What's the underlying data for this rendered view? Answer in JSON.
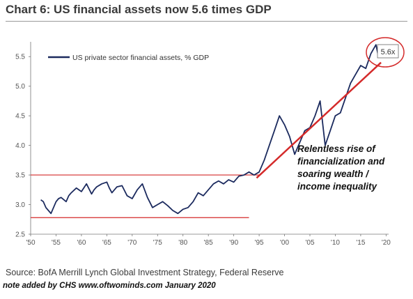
{
  "title": "Chart 6: US financial assets now 5.6 times GDP",
  "source": "Source: BofA Merrill Lynch Global Investment Strategy, Federal Reserve",
  "note": "note added by CHS   www.oftwominds.com   January 2020",
  "colors": {
    "line": "#1b2a5e",
    "annotation": "#d42a2a",
    "axis": "#555555"
  },
  "annotation": {
    "badge": "5.6x",
    "text_lines": [
      "Relentless rise of",
      "financialization and",
      "soaring wealth /",
      "income inequality"
    ]
  },
  "chart_data": {
    "type": "line",
    "title": "Chart 6: US financial assets now 5.6 times GDP",
    "xlabel": "",
    "ylabel": "",
    "xlim": [
      1950,
      2020.5
    ],
    "ylim": [
      2.5,
      5.75
    ],
    "xticks": [
      1950,
      1955,
      1960,
      1965,
      1970,
      1975,
      1980,
      1985,
      1990,
      1995,
      2000,
      2005,
      2010,
      2015,
      2020
    ],
    "xtick_labels": [
      "'50",
      "'55",
      "'60",
      "'65",
      "'70",
      "'75",
      "'80",
      "'85",
      "'90",
      "'95",
      "'00",
      "'05",
      "'10",
      "'15",
      "'20"
    ],
    "yticks": [
      2.5,
      3.0,
      3.5,
      4.0,
      4.5,
      5.0,
      5.5
    ],
    "ytick_labels": [
      "2.5",
      "3.0",
      "3.5",
      "4.0",
      "4.5",
      "5.0",
      "5.5"
    ],
    "grid": false,
    "legend": "top-left",
    "series": [
      {
        "name": "US private sector financial assets, % GDP",
        "x": [
          1952,
          1952.5,
          1953,
          1953.5,
          1954,
          1955,
          1955.5,
          1956,
          1957,
          1957.5,
          1958,
          1959,
          1960,
          1961,
          1962,
          1962.5,
          1963,
          1964,
          1965,
          1965.5,
          1966,
          1967,
          1968,
          1969,
          1970,
          1971,
          1972,
          1973,
          1974,
          1975,
          1976,
          1977,
          1978,
          1979,
          1980,
          1981,
          1982,
          1983,
          1984,
          1985,
          1986,
          1987,
          1988,
          1989,
          1990,
          1991,
          1992,
          1993,
          1994,
          1995,
          1996,
          1997,
          1998,
          1999,
          2000,
          2001,
          2002,
          2003,
          2004,
          2005,
          2006,
          2007,
          2008,
          2009,
          2010,
          2011,
          2012,
          2013,
          2014,
          2015,
          2016,
          2017,
          2018,
          2018.5,
          2019,
          2019.3
        ],
        "values": [
          3.08,
          3.05,
          2.95,
          2.9,
          2.85,
          3.05,
          3.1,
          3.12,
          3.05,
          3.15,
          3.2,
          3.28,
          3.22,
          3.35,
          3.18,
          3.25,
          3.3,
          3.35,
          3.38,
          3.28,
          3.2,
          3.3,
          3.32,
          3.15,
          3.1,
          3.25,
          3.35,
          3.12,
          2.95,
          3.0,
          3.05,
          2.98,
          2.9,
          2.85,
          2.92,
          2.95,
          3.05,
          3.2,
          3.15,
          3.25,
          3.35,
          3.4,
          3.35,
          3.42,
          3.38,
          3.48,
          3.5,
          3.55,
          3.5,
          3.55,
          3.75,
          4.0,
          4.25,
          4.5,
          4.35,
          4.15,
          3.85,
          4.05,
          4.25,
          4.3,
          4.5,
          4.75,
          4.0,
          4.25,
          4.5,
          4.55,
          4.8,
          5.05,
          5.2,
          5.35,
          5.3,
          5.55,
          5.7,
          5.5,
          5.65,
          5.6
        ]
      }
    ],
    "reference_lines": [
      {
        "y": 3.5,
        "x_start": 1950,
        "x_end": 1995
      },
      {
        "y": 2.78,
        "x_start": 1950,
        "x_end": 1993
      }
    ],
    "trend_line": {
      "x": [
        1994.5,
        2019
      ],
      "y": [
        3.45,
        5.4
      ]
    }
  }
}
